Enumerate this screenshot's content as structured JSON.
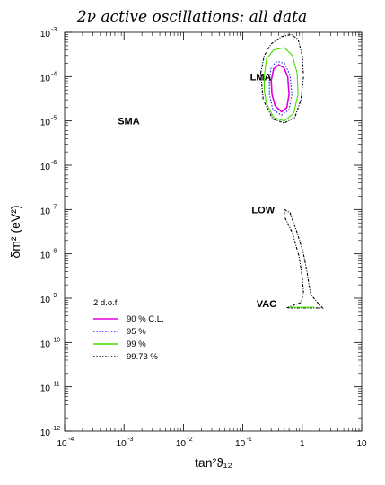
{
  "chart_data": {
    "type": "contour",
    "title": "2ν active oscillations: all data",
    "xlabel": "tan²ϑ₁₂",
    "ylabel": "δm² (eV²)",
    "x_scale": "log",
    "y_scale": "log",
    "xlim": [
      0.0001,
      10
    ],
    "ylim": [
      1e-12,
      0.001
    ],
    "x_ticks": [
      {
        "base": "10",
        "exp": "-4",
        "value": 0.0001
      },
      {
        "base": "10",
        "exp": "-3",
        "value": 0.001
      },
      {
        "base": "10",
        "exp": "-2",
        "value": 0.01
      },
      {
        "base": "10",
        "exp": "-1",
        "value": 0.1
      },
      {
        "base": "1",
        "exp": "",
        "value": 1
      },
      {
        "base": "10",
        "exp": "",
        "value": 10
      }
    ],
    "y_ticks": [
      {
        "base": "10",
        "exp": "-12",
        "value": 1e-12
      },
      {
        "base": "10",
        "exp": "-11",
        "value": 1e-11
      },
      {
        "base": "10",
        "exp": "-10",
        "value": 1e-10
      },
      {
        "base": "10",
        "exp": "-9",
        "value": 1e-09
      },
      {
        "base": "10",
        "exp": "-8",
        "value": 1e-08
      },
      {
        "base": "10",
        "exp": "-7",
        "value": 1e-07
      },
      {
        "base": "10",
        "exp": "-6",
        "value": 1e-06
      },
      {
        "base": "10",
        "exp": "-5",
        "value": 1e-05
      },
      {
        "base": "10",
        "exp": "-4",
        "value": 0.0001
      },
      {
        "base": "10",
        "exp": "-3",
        "value": 0.001
      }
    ],
    "region_labels": [
      {
        "text": "LMA",
        "x": 0.2,
        "y": 0.0001
      },
      {
        "text": "SMA",
        "x": 0.0012,
        "y": 1e-05
      },
      {
        "text": "LOW",
        "x": 0.22,
        "y": 1e-07
      },
      {
        "text": "VAC",
        "x": 0.25,
        "y": 7.5e-10
      }
    ],
    "legend": {
      "title": "2 d.o.f.",
      "position": "lower-left",
      "entries": [
        {
          "label": "90 % C.L.",
          "color": "#e000e0",
          "dash": "solid"
        },
        {
          "label": "95 %",
          "color": "#1a1aff",
          "dash": "dotted"
        },
        {
          "label": "99 %",
          "color": "#44dd00",
          "dash": "solid"
        },
        {
          "label": "99.73 %",
          "color": "#000000",
          "dash": "dotted"
        }
      ]
    },
    "series": [
      {
        "cl": "90 %",
        "color": "#e000e0",
        "points": [
          [
            0.3,
            8e-05
          ],
          [
            0.33,
            0.00015
          ],
          [
            0.4,
            0.000185
          ],
          [
            0.49,
            0.00016
          ],
          [
            0.57,
            0.0001
          ],
          [
            0.6,
            4e-05
          ],
          [
            0.55,
            2e-05
          ],
          [
            0.45,
            1.6e-05
          ],
          [
            0.35,
            2.2e-05
          ],
          [
            0.31,
            4e-05
          ],
          [
            0.3,
            8e-05
          ]
        ]
      },
      {
        "cl": "95 %",
        "color": "#1a1aff",
        "points": [
          [
            0.28,
            8e-05
          ],
          [
            0.3,
            0.00017
          ],
          [
            0.38,
            0.00022
          ],
          [
            0.5,
            0.0002
          ],
          [
            0.62,
            0.00011
          ],
          [
            0.67,
            4e-05
          ],
          [
            0.6,
            1.8e-05
          ],
          [
            0.45,
            1.35e-05
          ],
          [
            0.32,
            1.8e-05
          ],
          [
            0.28,
            4e-05
          ],
          [
            0.28,
            8e-05
          ]
        ]
      },
      {
        "cl": "99 %",
        "color": "#44dd00",
        "points": [
          [
            0.23,
            0.0001
          ],
          [
            0.25,
            0.00025
          ],
          [
            0.33,
            0.0004
          ],
          [
            0.5,
            0.00045
          ],
          [
            0.68,
            0.0003
          ],
          [
            0.82,
            0.00012
          ],
          [
            0.85,
            4e-05
          ],
          [
            0.72,
            1.5e-05
          ],
          [
            0.5,
            1e-05
          ],
          [
            0.33,
            1.2e-05
          ],
          [
            0.25,
            2.5e-05
          ],
          [
            0.23,
            5e-05
          ],
          [
            0.23,
            0.0001
          ]
        ]
      },
      {
        "cl": "99.73 %",
        "color": "#000000",
        "points": [
          [
            0.2,
            0.00012
          ],
          [
            0.23,
            0.0003
          ],
          [
            0.3,
            0.00055
          ],
          [
            0.45,
            0.0008
          ],
          [
            0.65,
            0.0009
          ],
          [
            0.85,
            0.0007
          ],
          [
            1.0,
            0.0003
          ],
          [
            1.05,
            0.0001
          ],
          [
            0.95,
            3e-05
          ],
          [
            0.75,
            1.2e-05
          ],
          [
            0.5,
            9e-06
          ],
          [
            0.32,
            1.1e-05
          ],
          [
            0.22,
            3e-05
          ],
          [
            0.2,
            0.00012
          ]
        ]
      },
      {
        "cl": "99.73 %",
        "color": "#000000",
        "points": [
          [
            0.5,
            1e-07
          ],
          [
            0.62,
            8.5e-08
          ],
          [
            0.82,
            3e-08
          ],
          [
            1.05,
            1e-08
          ],
          [
            1.2,
            4e-09
          ],
          [
            1.3,
            2e-09
          ],
          [
            1.4,
            1.2e-09
          ],
          [
            1.8,
            8e-10
          ],
          [
            2.2,
            6e-10
          ],
          [
            0.55,
            6e-10
          ],
          [
            0.95,
            8e-10
          ],
          [
            1.05,
            1.3e-09
          ],
          [
            1.0,
            3e-09
          ],
          [
            0.88,
            9e-09
          ],
          [
            0.68,
            3e-08
          ],
          [
            0.5,
            7e-08
          ],
          [
            0.5,
            1e-07
          ]
        ]
      },
      {
        "cl": "99 %",
        "color": "#44dd00",
        "points": [
          [
            0.6,
            6.2e-10
          ],
          [
            1.6,
            6.2e-10
          ]
        ]
      }
    ]
  }
}
